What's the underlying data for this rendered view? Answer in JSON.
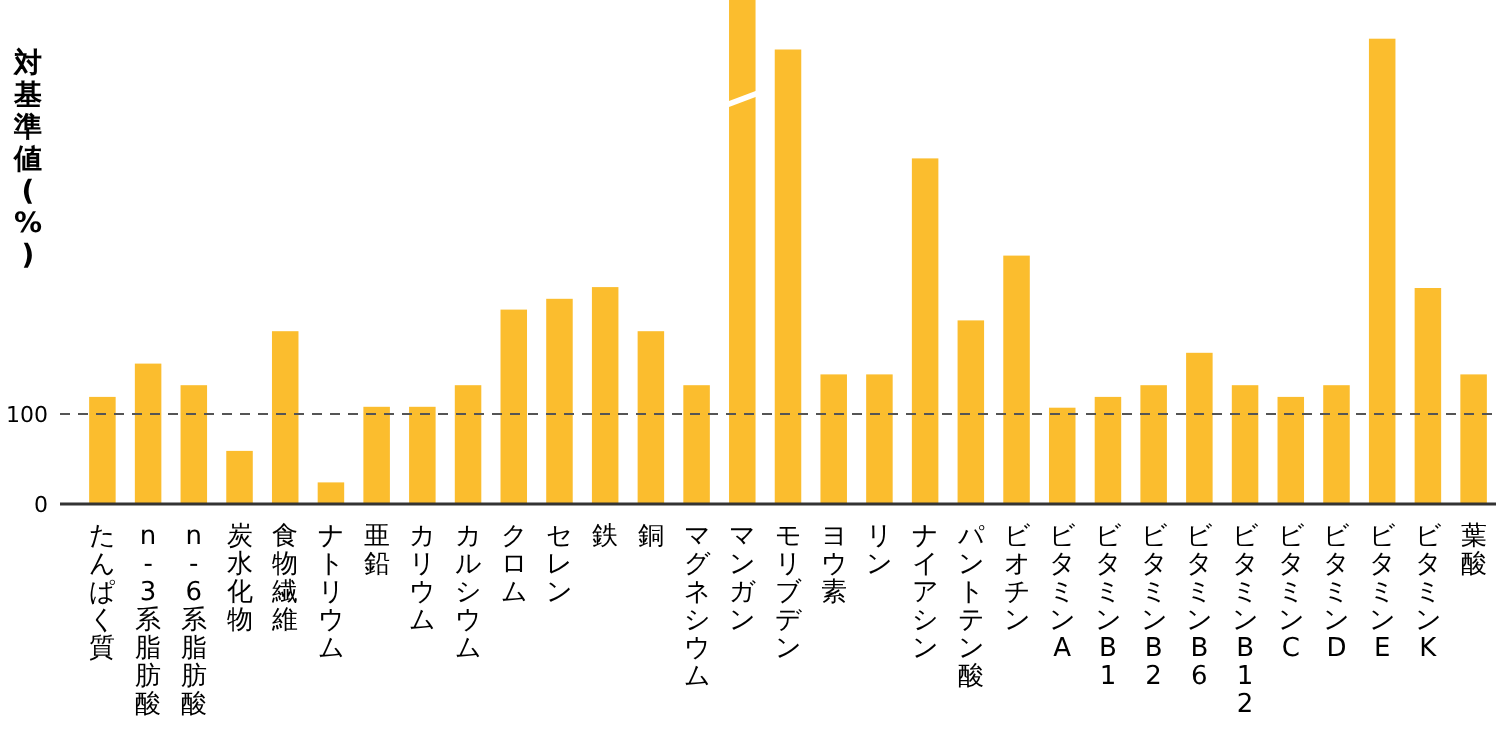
{
  "chart_data": {
    "type": "bar",
    "ylabel": "対基準値(%)",
    "categories": [
      "たんぱく質",
      "n-3系脂肪酸",
      "n-6系脂肪酸",
      "炭水化物",
      "食物繊維",
      "ナトリウム",
      "亜鉛",
      "カリウム",
      "カルシウム",
      "クロム",
      "セレン",
      "鉄",
      "銅",
      "マグネシウム",
      "マンガン",
      "モリブデン",
      "ヨウ素",
      "リン",
      "ナイアシン",
      "パントテン酸",
      "ビオチン",
      "ビタミンA",
      "ビタミンB1",
      "ビタミンB2",
      "ビタミンB6",
      "ビタミンB12",
      "ビタミンC",
      "ビタミンD",
      "ビタミンE",
      "ビタミンK",
      "葉酸"
    ],
    "values": [
      119,
      156,
      132,
      59,
      192,
      24,
      108,
      108,
      132,
      216,
      228,
      241,
      192,
      132,
      560,
      505,
      144,
      144,
      384,
      204,
      276,
      107,
      119,
      132,
      168,
      132,
      119,
      132,
      517,
      240,
      144
    ],
    "color": "#fbbd2e",
    "ylim": [
      0,
      560
    ],
    "yticks": [
      0,
      100
    ],
    "grid": false,
    "ref_lines": [
      {
        "axis": "y",
        "value": 100,
        "color": "#555555",
        "line_style": "dashed"
      }
    ]
  }
}
